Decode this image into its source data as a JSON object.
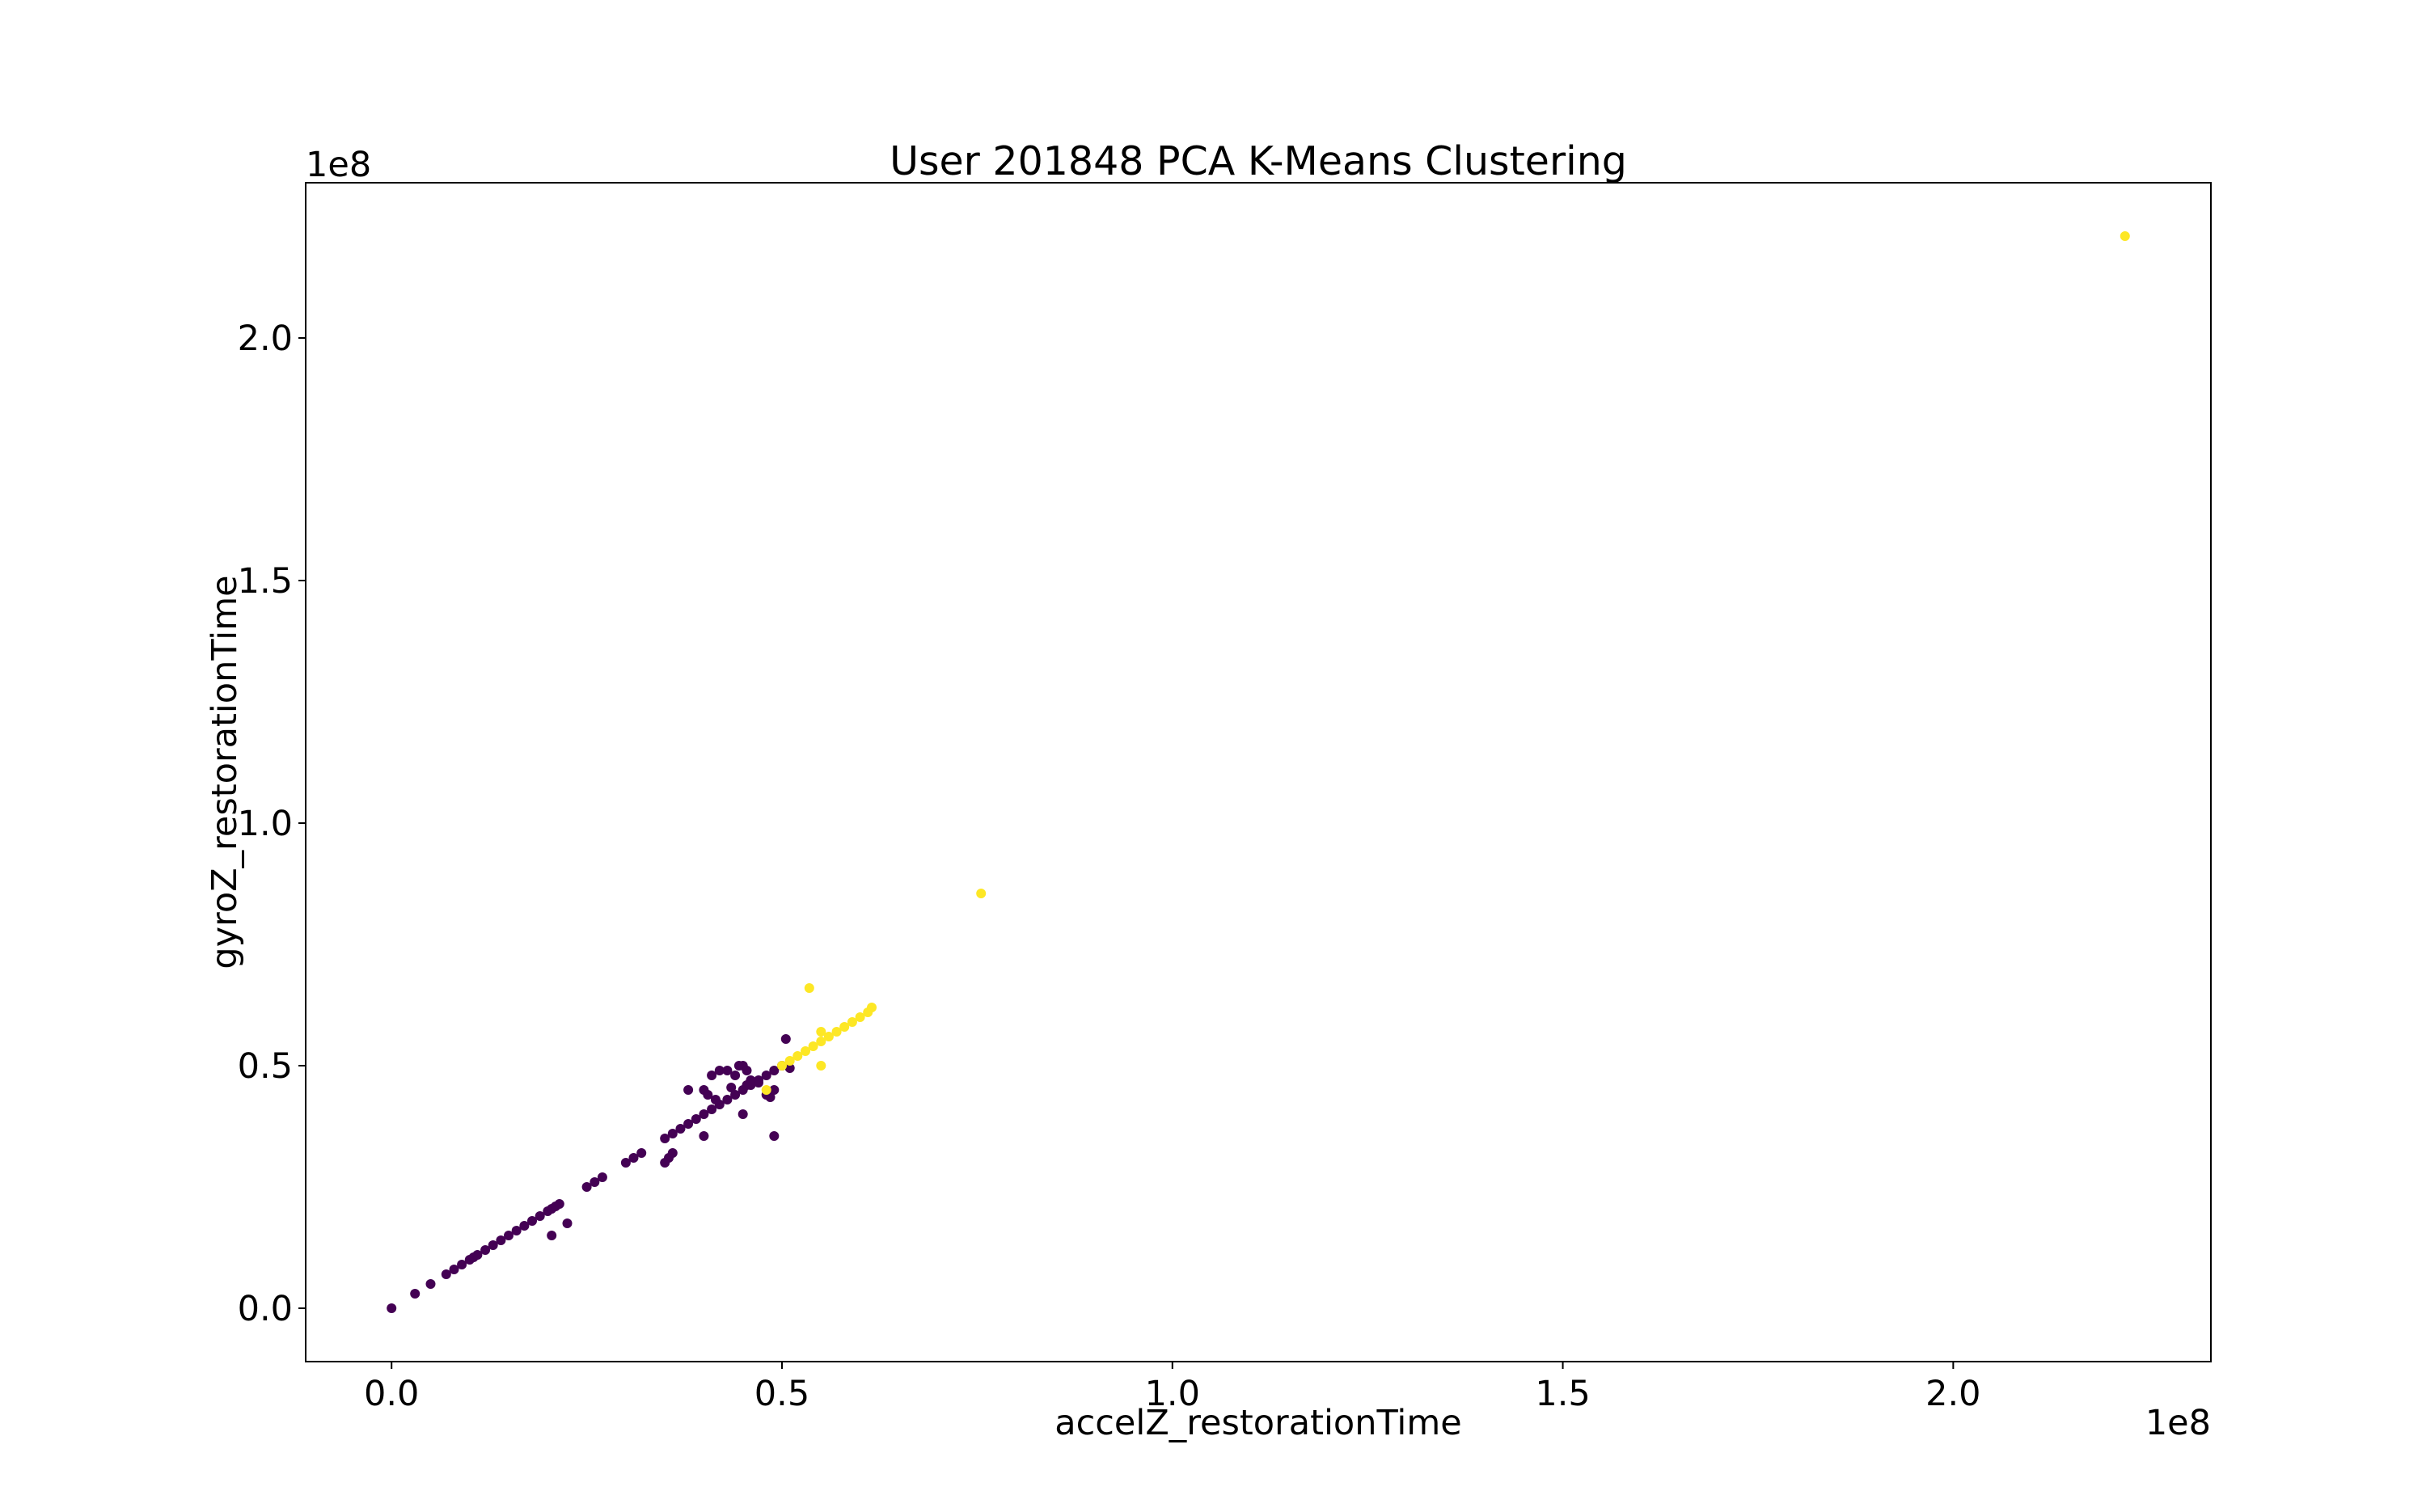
{
  "chart_data": {
    "type": "scatter",
    "title": "User 201848 PCA K-Means Clustering",
    "xlabel": "accelZ_restorationTime",
    "ylabel": "gyroZ_restorationTime",
    "x_offset_text": "1e8",
    "y_offset_text": "1e8",
    "x_scale": 100000000,
    "y_scale": 100000000,
    "xlim": [
      -0.11,
      2.33
    ],
    "ylim": [
      -0.11,
      2.32
    ],
    "xticks": [
      0.0,
      0.5,
      1.0,
      1.5,
      2.0
    ],
    "xtick_labels": [
      "0.0",
      "0.5",
      "1.0",
      "1.5",
      "2.0"
    ],
    "yticks": [
      0.0,
      0.5,
      1.0,
      1.5,
      2.0
    ],
    "ytick_labels": [
      "0.0",
      "0.5",
      "1.0",
      "1.5",
      "2.0"
    ],
    "grid": false,
    "legend": "none",
    "series": [
      {
        "color": "#440154",
        "x": [
          0.0,
          0.03,
          0.05,
          0.07,
          0.08,
          0.09,
          0.1,
          0.105,
          0.11,
          0.12,
          0.13,
          0.14,
          0.15,
          0.16,
          0.17,
          0.18,
          0.19,
          0.2,
          0.205,
          0.21,
          0.215,
          0.205,
          0.225,
          0.25,
          0.26,
          0.27,
          0.3,
          0.31,
          0.32,
          0.35,
          0.355,
          0.36,
          0.36,
          0.37,
          0.38,
          0.39,
          0.4,
          0.41,
          0.42,
          0.43,
          0.44,
          0.45,
          0.46,
          0.47,
          0.48,
          0.49,
          0.5,
          0.38,
          0.4,
          0.405,
          0.41,
          0.415,
          0.42,
          0.43,
          0.435,
          0.44,
          0.445,
          0.45,
          0.455,
          0.46,
          0.455,
          0.47,
          0.48,
          0.485,
          0.49,
          0.505,
          0.51,
          0.45,
          0.49,
          0.4,
          0.35
        ],
        "y": [
          0.0,
          0.03,
          0.05,
          0.07,
          0.08,
          0.09,
          0.1,
          0.105,
          0.11,
          0.12,
          0.13,
          0.14,
          0.15,
          0.16,
          0.17,
          0.18,
          0.19,
          0.2,
          0.205,
          0.21,
          0.215,
          0.15,
          0.175,
          0.25,
          0.26,
          0.27,
          0.3,
          0.31,
          0.32,
          0.35,
          0.31,
          0.32,
          0.36,
          0.37,
          0.38,
          0.39,
          0.4,
          0.41,
          0.42,
          0.43,
          0.44,
          0.45,
          0.46,
          0.47,
          0.48,
          0.49,
          0.5,
          0.45,
          0.45,
          0.44,
          0.48,
          0.43,
          0.49,
          0.49,
          0.455,
          0.48,
          0.5,
          0.5,
          0.49,
          0.47,
          0.46,
          0.465,
          0.44,
          0.435,
          0.45,
          0.555,
          0.495,
          0.4,
          0.355,
          0.355,
          0.3
        ]
      },
      {
        "color": "#fde725",
        "x": [
          0.5,
          0.51,
          0.52,
          0.53,
          0.54,
          0.55,
          0.56,
          0.57,
          0.58,
          0.59,
          0.6,
          0.61,
          0.615,
          0.535,
          0.55,
          0.55,
          0.48,
          0.755,
          2.22
        ],
        "y": [
          0.5,
          0.51,
          0.52,
          0.53,
          0.54,
          0.55,
          0.56,
          0.57,
          0.58,
          0.59,
          0.6,
          0.61,
          0.62,
          0.66,
          0.57,
          0.5,
          0.45,
          0.855,
          2.21
        ]
      }
    ]
  }
}
